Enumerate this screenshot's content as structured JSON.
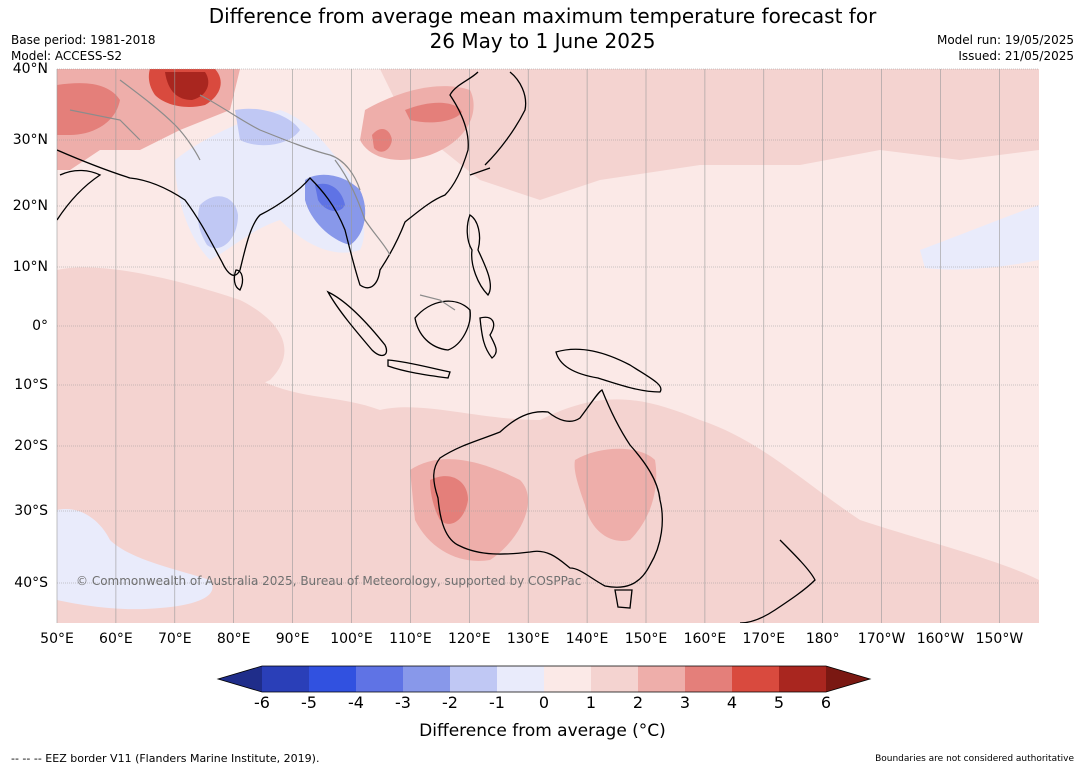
{
  "title": {
    "line1": "Difference from average mean maximum temperature forecast for",
    "line2": "26 May to 1 June 2025"
  },
  "meta": {
    "base_period": "Base period: 1981-2018",
    "model": "Model: ACCESS-S2",
    "model_run": "Model run: 19/05/2025",
    "issued": "Issued: 21/05/2025"
  },
  "map": {
    "lon_labels": [
      "50°E",
      "60°E",
      "70°E",
      "80°E",
      "90°E",
      "100°E",
      "110°E",
      "120°E",
      "130°E",
      "140°E",
      "150°E",
      "160°E",
      "170°E",
      "180°",
      "170°W",
      "160°W",
      "150°W"
    ],
    "lat_labels": [
      "40°N",
      "30°N",
      "20°N",
      "10°N",
      "0°",
      "10°S",
      "20°S",
      "30°S",
      "40°S"
    ],
    "copyright": "© Commonwealth of Australia 2025, Bureau of Meteorology, supported by COSPPac",
    "background_color": "#fbe9e7"
  },
  "colorbar": {
    "ticks": [
      "-6",
      "-5",
      "-4",
      "-3",
      "-2",
      "-1",
      "0",
      "1",
      "2",
      "3",
      "4",
      "5",
      "6"
    ],
    "colors": [
      "#1f2d8a",
      "#2a3fb8",
      "#3151e0",
      "#5f73e5",
      "#8898ea",
      "#c0c8f4",
      "#e9ebfb",
      "#fbe9e7",
      "#f4d3d0",
      "#eeaeaa",
      "#e47f7a",
      "#d94a3e",
      "#a9261f",
      "#7a1812"
    ],
    "label": "Difference from average (°C)"
  },
  "footer": {
    "eez": "--  --  -- EEZ border V11 (Flanders Marine Institute, 2019).",
    "boundaries": "Boundaries are not considered authoritative"
  }
}
